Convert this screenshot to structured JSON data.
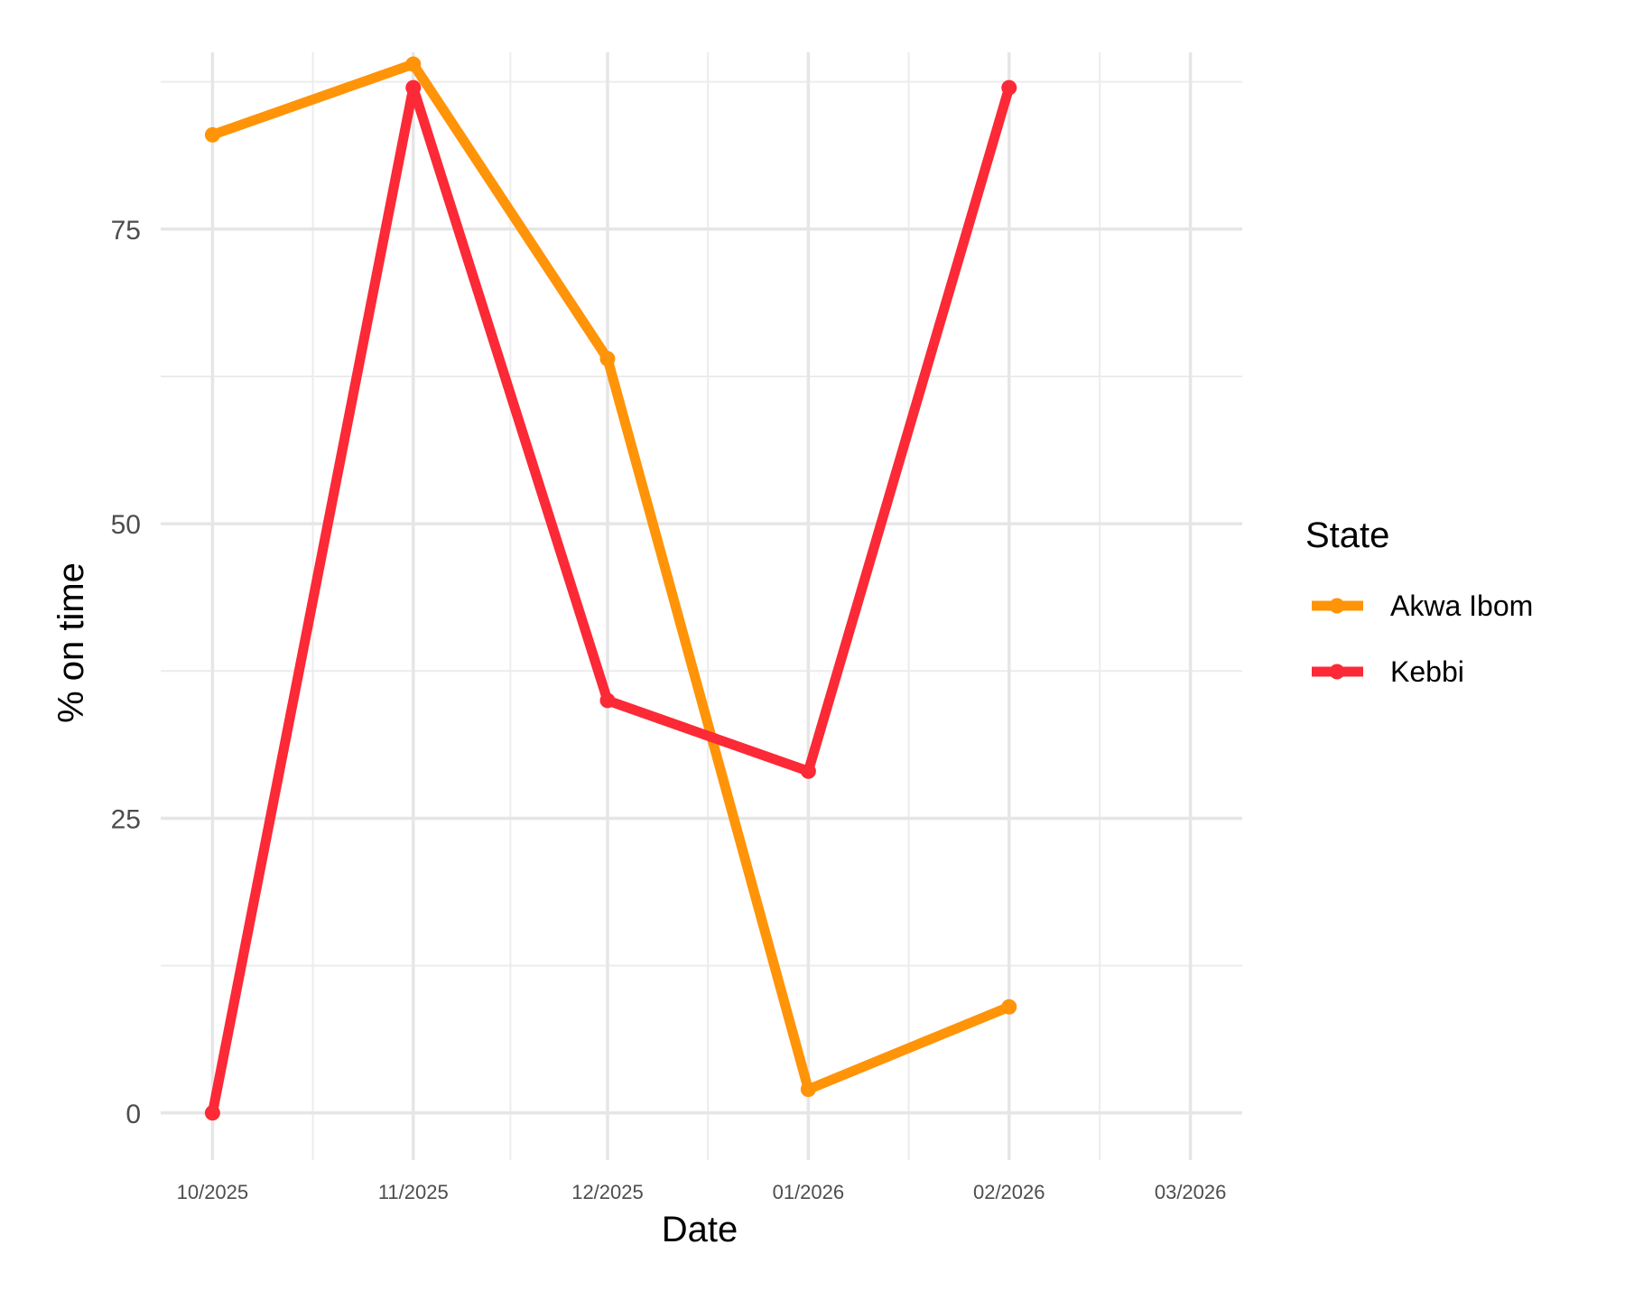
{
  "chart_data": {
    "type": "line",
    "xlabel": "Date",
    "ylabel": "% on time",
    "x_ticks": [
      "10/2025",
      "11/2025",
      "12/2025",
      "01/2026",
      "02/2026",
      "03/2026"
    ],
    "y_ticks": [
      "0",
      "25",
      "50",
      "75"
    ],
    "ylim": [
      -4,
      90
    ],
    "x_range": [
      "2025-09-23",
      "2026-03-09"
    ],
    "grid": true,
    "legend": {
      "title": "State",
      "position": "right",
      "entries": [
        "Akwa Ibom",
        "Kebbi"
      ]
    },
    "x": [
      "2025-10-01",
      "2025-11-01",
      "2025-12-01",
      "2026-01-01",
      "2026-02-01"
    ],
    "series": [
      {
        "name": "Akwa Ibom",
        "color": "#FF9408",
        "values": [
          83,
          89,
          64,
          2,
          9
        ]
      },
      {
        "name": "Kebbi",
        "color": "#FC2936",
        "values": [
          0,
          87,
          35,
          29,
          87
        ]
      }
    ]
  }
}
